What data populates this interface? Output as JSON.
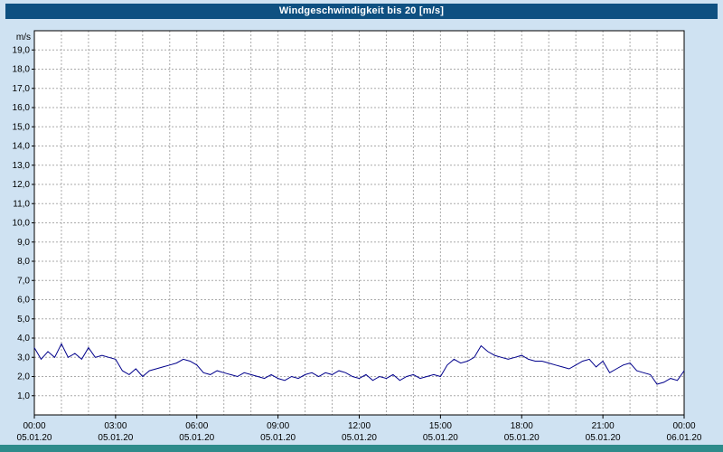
{
  "window": {
    "title": "Windgeschwindigkeit bis 20 [m/s]"
  },
  "colors": {
    "title_bar_bg": "#0e5081",
    "title_text": "#ffffff",
    "page_bg": "#cfe2f2",
    "plot_bg": "#ffffff",
    "grid": "#aaaaaa",
    "axis": "#000000",
    "series_line": "#00008b",
    "footer_strip": "#2e8b8b"
  },
  "chart_data": {
    "type": "line",
    "title": "Windgeschwindigkeit bis 20 [m/s]",
    "xlabel": "",
    "ylabel": "m/s",
    "ylim": [
      0,
      20
    ],
    "ytick_step": 1,
    "ytick_values": [
      19,
      18,
      17,
      16,
      15,
      14,
      13,
      12,
      11,
      10,
      9,
      8,
      7,
      6,
      5,
      4,
      3,
      2,
      1
    ],
    "ytick_labels": [
      "19,0",
      "18,0",
      "17,0",
      "16,0",
      "15,0",
      "14,0",
      "13,0",
      "12,0",
      "11,0",
      "10,0",
      "9,0",
      "8,0",
      "7,0",
      "6,0",
      "5,0",
      "4,0",
      "3,0",
      "2,0",
      "1,0"
    ],
    "x_hours_range": [
      0,
      24
    ],
    "x_minor_grid_hours": 1,
    "grid": "dashed",
    "legend": "none",
    "xticks": [
      {
        "hour": 0,
        "time": "00:00",
        "date": "05.01.20"
      },
      {
        "hour": 3,
        "time": "03:00",
        "date": "05.01.20"
      },
      {
        "hour": 6,
        "time": "06:00",
        "date": "05.01.20"
      },
      {
        "hour": 9,
        "time": "09:00",
        "date": "05.01.20"
      },
      {
        "hour": 12,
        "time": "12:00",
        "date": "05.01.20"
      },
      {
        "hour": 15,
        "time": "15:00",
        "date": "05.01.20"
      },
      {
        "hour": 18,
        "time": "18:00",
        "date": "05.01.20"
      },
      {
        "hour": 21,
        "time": "21:00",
        "date": "05.01.20"
      },
      {
        "hour": 24,
        "time": "00:00",
        "date": "06.01.20"
      }
    ],
    "series": [
      {
        "name": "Windgeschwindigkeit",
        "unit": "m/s",
        "color": "#00008b",
        "x_start_hour": 0,
        "x_interval_minutes": 15,
        "values": [
          3.5,
          2.9,
          3.3,
          3.0,
          3.7,
          3.0,
          3.2,
          2.9,
          3.5,
          3.0,
          3.1,
          3.0,
          2.9,
          2.3,
          2.1,
          2.4,
          2.0,
          2.3,
          2.4,
          2.5,
          2.6,
          2.7,
          2.9,
          2.8,
          2.6,
          2.2,
          2.1,
          2.3,
          2.2,
          2.1,
          2.0,
          2.2,
          2.1,
          2.0,
          1.9,
          2.1,
          1.9,
          1.8,
          2.0,
          1.9,
          2.1,
          2.2,
          2.0,
          2.2,
          2.1,
          2.3,
          2.2,
          2.0,
          1.9,
          2.1,
          1.8,
          2.0,
          1.9,
          2.1,
          1.8,
          2.0,
          2.1,
          1.9,
          2.0,
          2.1,
          2.0,
          2.6,
          2.9,
          2.7,
          2.8,
          3.0,
          3.6,
          3.3,
          3.1,
          3.0,
          2.9,
          3.0,
          3.1,
          2.9,
          2.8,
          2.8,
          2.7,
          2.6,
          2.5,
          2.4,
          2.6,
          2.8,
          2.9,
          2.5,
          2.8,
          2.2,
          2.4,
          2.6,
          2.7,
          2.3,
          2.2,
          2.1,
          1.6,
          1.7,
          1.9,
          1.8,
          2.3
        ]
      }
    ]
  }
}
